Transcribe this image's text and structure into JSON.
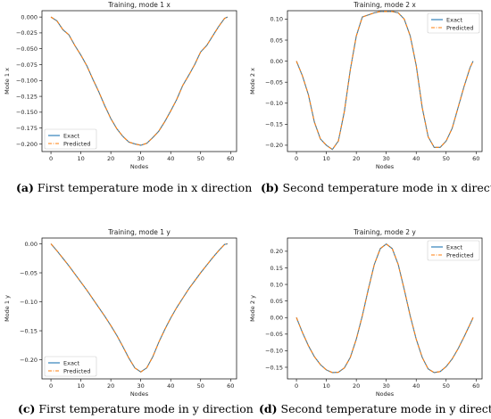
{
  "colors": {
    "exact": "#1f77b4",
    "predicted": "#ff7f0e",
    "axis": "#000000",
    "text": "#222222"
  },
  "chart_data": [
    {
      "type": "line",
      "title": "Training, mode 1 x",
      "xlabel": "Nodes",
      "ylabel": "Mode 1 x",
      "xlim": [
        -3,
        62
      ],
      "ylim": [
        -0.212,
        0.01
      ],
      "xticks": [
        0,
        10,
        20,
        30,
        40,
        50,
        60
      ],
      "yticks": [
        0.0,
        -0.025,
        -0.05,
        -0.075,
        -0.1,
        -0.125,
        -0.15,
        -0.175,
        -0.2
      ],
      "ytick_labels": [
        "0.000",
        "−0.025",
        "−0.050",
        "−0.075",
        "−0.100",
        "−0.125",
        "−0.150",
        "−0.175",
        "−0.200"
      ],
      "legend": {
        "position": "lower-left",
        "entries": [
          "Exact",
          "Predicted"
        ]
      },
      "x": [
        0,
        2,
        4,
        6,
        8,
        10,
        12,
        14,
        16,
        18,
        20,
        22,
        24,
        26,
        28,
        30,
        32,
        34,
        36,
        38,
        40,
        42,
        44,
        46,
        48,
        50,
        52,
        54,
        56,
        58,
        59
      ],
      "series": [
        {
          "name": "Exact",
          "style": "solid",
          "values": [
            0.0,
            -0.006,
            -0.02,
            -0.028,
            -0.045,
            -0.06,
            -0.077,
            -0.098,
            -0.118,
            -0.14,
            -0.16,
            -0.176,
            -0.188,
            -0.197,
            -0.2,
            -0.202,
            -0.199,
            -0.19,
            -0.18,
            -0.165,
            -0.148,
            -0.13,
            -0.108,
            -0.092,
            -0.075,
            -0.055,
            -0.045,
            -0.03,
            -0.015,
            -0.002,
            0.0
          ]
        },
        {
          "name": "Predicted",
          "style": "dashdot",
          "values": [
            0.0,
            -0.006,
            -0.02,
            -0.028,
            -0.045,
            -0.06,
            -0.077,
            -0.098,
            -0.118,
            -0.14,
            -0.16,
            -0.176,
            -0.188,
            -0.197,
            -0.2,
            -0.202,
            -0.199,
            -0.19,
            -0.18,
            -0.165,
            -0.148,
            -0.13,
            -0.108,
            -0.092,
            -0.075,
            -0.055,
            -0.045,
            -0.03,
            -0.015,
            -0.002,
            0.0
          ]
        }
      ],
      "caption": {
        "label": "(a)",
        "text": " First temperature mode in x direction"
      }
    },
    {
      "type": "line",
      "title": "Training, mode 2 x",
      "xlabel": "Nodes",
      "ylabel": "Mode 2 x",
      "xlim": [
        -3,
        62
      ],
      "ylim": [
        -0.215,
        0.12
      ],
      "xticks": [
        0,
        10,
        20,
        30,
        40,
        50,
        60
      ],
      "yticks": [
        0.1,
        0.05,
        0.0,
        -0.05,
        -0.1,
        -0.15,
        -0.2
      ],
      "ytick_labels": [
        "0.10",
        "0.05",
        "0.00",
        "−0.05",
        "−0.10",
        "−0.15",
        "−0.20"
      ],
      "legend": {
        "position": "top-right",
        "entries": [
          "Exact",
          "Predicted"
        ]
      },
      "x": [
        0,
        2,
        4,
        6,
        8,
        10,
        12,
        14,
        16,
        18,
        20,
        22,
        24,
        26,
        28,
        30,
        32,
        34,
        36,
        38,
        40,
        42,
        44,
        46,
        48,
        50,
        52,
        54,
        56,
        58,
        59
      ],
      "series": [
        {
          "name": "Exact",
          "style": "solid",
          "values": [
            0.0,
            -0.035,
            -0.08,
            -0.145,
            -0.185,
            -0.2,
            -0.21,
            -0.19,
            -0.12,
            -0.02,
            0.06,
            0.105,
            0.11,
            0.115,
            0.118,
            0.118,
            0.118,
            0.115,
            0.1,
            0.06,
            -0.01,
            -0.11,
            -0.18,
            -0.205,
            -0.205,
            -0.19,
            -0.16,
            -0.11,
            -0.06,
            -0.015,
            0.0
          ]
        },
        {
          "name": "Predicted",
          "style": "dashdot",
          "values": [
            0.0,
            -0.035,
            -0.08,
            -0.145,
            -0.185,
            -0.2,
            -0.21,
            -0.19,
            -0.12,
            -0.02,
            0.06,
            0.105,
            0.11,
            0.115,
            0.118,
            0.118,
            0.118,
            0.115,
            0.1,
            0.06,
            -0.01,
            -0.11,
            -0.18,
            -0.205,
            -0.205,
            -0.19,
            -0.16,
            -0.11,
            -0.06,
            -0.015,
            0.0
          ]
        }
      ],
      "caption": {
        "label": "(b)",
        "text": " Second temperature mode in x direction"
      }
    },
    {
      "type": "line",
      "title": "Training, mode 1 y",
      "xlabel": "Nodes",
      "ylabel": "Mode 1 y",
      "xlim": [
        -3,
        62
      ],
      "ylim": [
        -0.233,
        0.01
      ],
      "xticks": [
        0,
        10,
        20,
        30,
        40,
        50,
        60
      ],
      "yticks": [
        0.0,
        -0.05,
        -0.1,
        -0.15,
        -0.2
      ],
      "ytick_labels": [
        "0.00",
        "−0.05",
        "−0.10",
        "−0.15",
        "−0.20"
      ],
      "legend": {
        "position": "lower-left",
        "entries": [
          "Exact",
          "Predicted"
        ]
      },
      "x": [
        0,
        2,
        4,
        6,
        8,
        10,
        12,
        14,
        16,
        18,
        20,
        22,
        24,
        26,
        28,
        30,
        32,
        34,
        36,
        38,
        40,
        42,
        44,
        46,
        48,
        50,
        52,
        54,
        56,
        58,
        59
      ],
      "series": [
        {
          "name": "Exact",
          "style": "solid",
          "values": [
            0.0,
            -0.012,
            -0.025,
            -0.038,
            -0.052,
            -0.066,
            -0.08,
            -0.095,
            -0.11,
            -0.125,
            -0.141,
            -0.158,
            -0.177,
            -0.197,
            -0.214,
            -0.221,
            -0.214,
            -0.195,
            -0.17,
            -0.148,
            -0.128,
            -0.11,
            -0.094,
            -0.078,
            -0.064,
            -0.05,
            -0.037,
            -0.024,
            -0.012,
            -0.001,
            0.0
          ]
        },
        {
          "name": "Predicted",
          "style": "dashdot",
          "values": [
            0.0,
            -0.012,
            -0.025,
            -0.038,
            -0.052,
            -0.066,
            -0.08,
            -0.095,
            -0.11,
            -0.125,
            -0.141,
            -0.158,
            -0.177,
            -0.197,
            -0.214,
            -0.221,
            -0.214,
            -0.195,
            -0.17,
            -0.148,
            -0.128,
            -0.11,
            -0.094,
            -0.078,
            -0.064,
            -0.05,
            -0.037,
            -0.024,
            -0.012,
            -0.001,
            0.0
          ]
        }
      ],
      "caption": {
        "label": "(c)",
        "text": " First temperature mode in y direction"
      }
    },
    {
      "type": "line",
      "title": "Training, mode 2 y",
      "xlabel": "Nodes",
      "ylabel": "Mode 2 y",
      "xlim": [
        -3,
        62
      ],
      "ylim": [
        -0.185,
        0.24
      ],
      "xticks": [
        0,
        10,
        20,
        30,
        40,
        50,
        60
      ],
      "yticks": [
        0.2,
        0.15,
        0.1,
        0.05,
        0.0,
        -0.05,
        -0.1,
        -0.15
      ],
      "ytick_labels": [
        "0.20",
        "0.15",
        "0.10",
        "0.05",
        "0.00",
        "−0.05",
        "−0.10",
        "−0.15"
      ],
      "legend": {
        "position": "top-right",
        "entries": [
          "Exact",
          "Predicted"
        ]
      },
      "x": [
        0,
        2,
        4,
        6,
        8,
        10,
        12,
        14,
        16,
        18,
        20,
        22,
        24,
        26,
        28,
        30,
        32,
        34,
        36,
        38,
        40,
        42,
        44,
        46,
        48,
        50,
        52,
        54,
        56,
        58,
        59
      ],
      "series": [
        {
          "name": "Exact",
          "style": "solid",
          "values": [
            0.0,
            -0.045,
            -0.085,
            -0.118,
            -0.142,
            -0.158,
            -0.166,
            -0.165,
            -0.152,
            -0.12,
            -0.065,
            0.005,
            0.085,
            0.16,
            0.208,
            0.222,
            0.208,
            0.16,
            0.085,
            0.005,
            -0.065,
            -0.12,
            -0.155,
            -0.166,
            -0.163,
            -0.148,
            -0.125,
            -0.094,
            -0.058,
            -0.02,
            0.0
          ]
        },
        {
          "name": "Predicted",
          "style": "dashdot",
          "values": [
            0.0,
            -0.045,
            -0.085,
            -0.118,
            -0.142,
            -0.158,
            -0.166,
            -0.165,
            -0.152,
            -0.12,
            -0.065,
            0.005,
            0.085,
            0.16,
            0.208,
            0.222,
            0.208,
            0.16,
            0.085,
            0.005,
            -0.065,
            -0.12,
            -0.155,
            -0.166,
            -0.163,
            -0.148,
            -0.125,
            -0.094,
            -0.058,
            -0.02,
            0.0
          ]
        }
      ],
      "caption": {
        "label": "(d)",
        "text": " Second temperature mode in y direction"
      }
    }
  ]
}
